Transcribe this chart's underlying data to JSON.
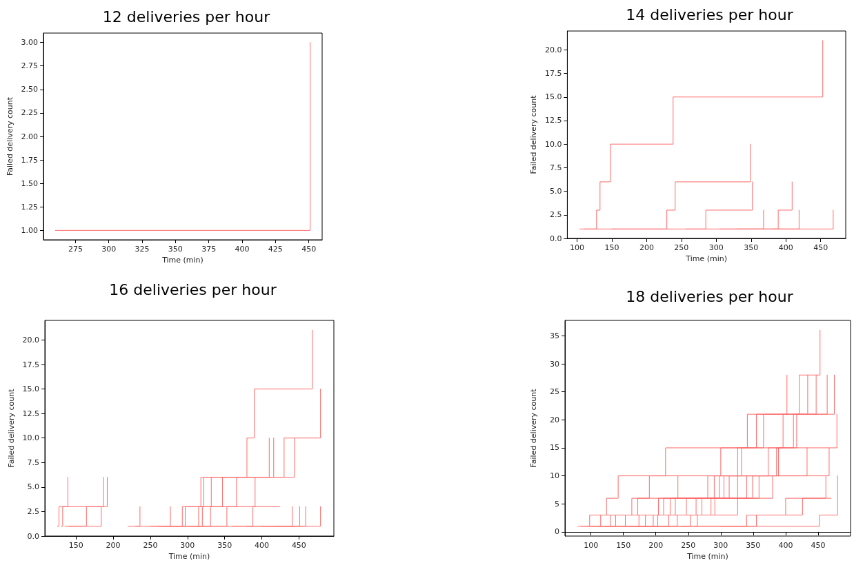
{
  "chart_data": [
    {
      "type": "step",
      "title": "12 deliveries per hour",
      "xlabel": "Time (min)",
      "ylabel": "Failed delivery count",
      "marker": "none",
      "xlim": [
        251,
        460
      ],
      "ylim": [
        0.9,
        3.1
      ],
      "xticks": [
        275,
        300,
        325,
        350,
        375,
        400,
        425,
        450
      ],
      "yticks": [
        {
          "value": 1,
          "label": "1.00"
        },
        {
          "value": 1.25,
          "label": "1.25"
        },
        {
          "value": 1.5,
          "label": "1.50"
        },
        {
          "value": 1.75,
          "label": "1.75"
        },
        {
          "value": 2,
          "label": "2.00"
        },
        {
          "value": 2.25,
          "label": "2.25"
        },
        {
          "value": 2.5,
          "label": "2.50"
        },
        {
          "value": 2.75,
          "label": "2.75"
        },
        {
          "value": 3,
          "label": "3.00"
        }
      ],
      "series": [
        {
          "color": "#ff6b6b",
          "x": [
            260,
            451
          ],
          "values": [
            1,
            3
          ]
        }
      ]
    },
    {
      "type": "step",
      "title": "14 deliveries per hour",
      "xlabel": "Time (min)",
      "ylabel": "Failed delivery count",
      "marker": "none",
      "xlim": [
        86,
        486
      ],
      "ylim": [
        0,
        22
      ],
      "xticks": [
        100,
        150,
        200,
        250,
        300,
        350,
        400,
        450
      ],
      "yticks": [
        {
          "value": 0,
          "label": "0.0"
        },
        {
          "value": 2.5,
          "label": "2.5"
        },
        {
          "value": 5,
          "label": "5.0"
        },
        {
          "value": 7.5,
          "label": "7.5"
        },
        {
          "value": 10,
          "label": "10.0"
        },
        {
          "value": 12.5,
          "label": "12.5"
        },
        {
          "value": 15,
          "label": "15.0"
        },
        {
          "value": 17.5,
          "label": "17.5"
        },
        {
          "value": 20,
          "label": "20.0"
        }
      ],
      "series": [
        {
          "color": "#ff6b6b",
          "x": [
            104,
            128,
            133,
            148,
            238,
            453
          ],
          "values": [
            1,
            3,
            6,
            10,
            15,
            21
          ]
        },
        {
          "color": "#ff6b6b",
          "x": [
            110,
            229,
            241,
            349
          ],
          "values": [
            1,
            3,
            6,
            10
          ]
        },
        {
          "color": "#ff6b6b",
          "x": [
            150,
            285,
            352
          ],
          "values": [
            1,
            3,
            6
          ]
        },
        {
          "color": "#ff6b6b",
          "x": [
            257,
            368
          ],
          "values": [
            1,
            3
          ]
        },
        {
          "color": "#ff6b6b",
          "x": [
            305,
            389,
            409
          ],
          "values": [
            1,
            3,
            6
          ]
        },
        {
          "color": "#ff6b6b",
          "x": [
            330,
            419
          ],
          "values": [
            1,
            3
          ]
        },
        {
          "color": "#ff6b6b",
          "x": [
            380,
            468
          ],
          "values": [
            1,
            3
          ]
        }
      ]
    },
    {
      "type": "step",
      "title": "16 deliveries per hour",
      "xlabel": "Time (min)",
      "ylabel": "Failed delivery count",
      "marker": "none",
      "xlim": [
        108,
        497
      ],
      "ylim": [
        0,
        22
      ],
      "xticks": [
        150,
        200,
        250,
        300,
        350,
        400,
        450
      ],
      "yticks": [
        {
          "value": 0,
          "label": "0.0"
        },
        {
          "value": 2.5,
          "label": "2.5"
        },
        {
          "value": 5,
          "label": "5.0"
        },
        {
          "value": 7.5,
          "label": "7.5"
        },
        {
          "value": 10,
          "label": "10.0"
        },
        {
          "value": 12.5,
          "label": "12.5"
        },
        {
          "value": 15,
          "label": "15.0"
        },
        {
          "value": 17.5,
          "label": "17.5"
        },
        {
          "value": 20,
          "label": "20.0"
        }
      ],
      "series": [
        {
          "color": "#ff6b6b",
          "x": [
            125,
            127,
            139
          ],
          "values": [
            1,
            3,
            6
          ]
        },
        {
          "color": "#ff6b6b",
          "x": [
            130,
            132,
            187
          ],
          "values": [
            1,
            3,
            6
          ]
        },
        {
          "color": "#ff6b6b",
          "x": [
            135,
            164,
            192
          ],
          "values": [
            1,
            3,
            6
          ]
        },
        {
          "color": "#ff6b6b",
          "x": [
            140,
            184
          ],
          "values": [
            1,
            3
          ]
        },
        {
          "color": "#ff6b6b",
          "x": [
            220,
            236
          ],
          "values": [
            1,
            3
          ]
        },
        {
          "color": "#ff6b6b",
          "x": [
            230,
            277
          ],
          "values": [
            1,
            3
          ]
        },
        {
          "color": "#ff6b6b",
          "x": [
            250,
            293,
            318,
            380,
            390,
            468
          ],
          "values": [
            1,
            3,
            6,
            10,
            15,
            21
          ]
        },
        {
          "color": "#ff6b6b",
          "x": [
            260,
            297,
            322,
            430,
            479
          ],
          "values": [
            1,
            3,
            6,
            10,
            15
          ]
        },
        {
          "color": "#ff6b6b",
          "x": [
            270,
            315,
            332,
            410
          ],
          "values": [
            1,
            3,
            6,
            10
          ]
        },
        {
          "color": "#ff6b6b",
          "x": [
            280,
            320,
            347,
            416
          ],
          "values": [
            1,
            3,
            6,
            10
          ]
        },
        {
          "color": "#ff6b6b",
          "x": [
            300,
            331,
            366,
            444
          ],
          "values": [
            1,
            3,
            6,
            10
          ]
        },
        {
          "color": "#ff6b6b",
          "x": [
            310,
            353,
            391
          ],
          "values": [
            1,
            3,
            6
          ]
        },
        {
          "color": "#ff6b6b",
          "x": [
            320,
            388,
            424
          ],
          "values": [
            1,
            3,
            3
          ]
        },
        {
          "color": "#ff6b6b",
          "x": [
            360,
            441
          ],
          "values": [
            1,
            3
          ]
        },
        {
          "color": "#ff6b6b",
          "x": [
            380,
            451
          ],
          "values": [
            1,
            3
          ]
        },
        {
          "color": "#ff6b6b",
          "x": [
            400,
            459
          ],
          "values": [
            1,
            3
          ]
        },
        {
          "color": "#ff6b6b",
          "x": [
            420,
            479
          ],
          "values": [
            1,
            3
          ]
        }
      ]
    },
    {
      "type": "step",
      "title": "18 deliveries per hour",
      "xlabel": "Time (min)",
      "ylabel": "Failed delivery count",
      "marker": "none",
      "xlim": [
        60,
        500
      ],
      "ylim": [
        -0.75,
        37.75
      ],
      "xticks": [
        100,
        150,
        200,
        250,
        300,
        350,
        400,
        450
      ],
      "yticks": [
        0,
        5,
        10,
        15,
        20,
        25,
        30,
        35
      ],
      "series": [
        {
          "color": "#ff6b6b",
          "x": [
            80,
            98,
            124,
            142,
            215,
            341,
            421,
            453
          ],
          "values": [
            1,
            3,
            6,
            10,
            15,
            21,
            28,
            36
          ]
        },
        {
          "color": "#ff6b6b",
          "x": [
            85,
            115,
            163,
            190,
            300,
            355,
            402
          ],
          "values": [
            1,
            3,
            6,
            10,
            15,
            21,
            28
          ]
        },
        {
          "color": "#ff6b6b",
          "x": [
            95,
            130,
            172,
            290,
            326,
            366,
            434
          ],
          "values": [
            1,
            3,
            6,
            10,
            15,
            21,
            28
          ]
        },
        {
          "color": "#ff6b6b",
          "x": [
            100,
            138,
            204,
            280,
            332,
            396,
            447
          ],
          "values": [
            1,
            3,
            6,
            10,
            15,
            21,
            28
          ]
        },
        {
          "color": "#ff6b6b",
          "x": [
            110,
            153,
            212,
            298,
            373,
            412,
            464
          ],
          "values": [
            1,
            3,
            6,
            10,
            15,
            21,
            28
          ]
        },
        {
          "color": "#ff6b6b",
          "x": [
            120,
            174,
            230,
            305,
            386,
            417,
            475
          ],
          "values": [
            1,
            3,
            6,
            10,
            15,
            21,
            28
          ]
        },
        {
          "color": "#ff6b6b",
          "x": [
            130,
            184,
            247,
            313,
            389,
            479
          ],
          "values": [
            1,
            3,
            6,
            10,
            15,
            21
          ]
        },
        {
          "color": "#ff6b6b",
          "x": [
            140,
            203,
            262,
            326,
            467
          ],
          "values": [
            1,
            3,
            6,
            10,
            15
          ]
        },
        {
          "color": "#ff6b6b",
          "x": [
            150,
            220,
            271,
            349,
            433
          ],
          "values": [
            1,
            3,
            6,
            10,
            15
          ]
        },
        {
          "color": "#ff6b6b",
          "x": [
            160,
            233,
            285,
            359
          ],
          "values": [
            1,
            3,
            6,
            10
          ]
        },
        {
          "color": "#ff6b6b",
          "x": [
            170,
            253,
            291,
            340
          ],
          "values": [
            1,
            3,
            6,
            10
          ]
        },
        {
          "color": "#ff6b6b",
          "x": [
            180,
            196,
            222,
            234
          ],
          "values": [
            1,
            3,
            6,
            10
          ]
        },
        {
          "color": "#ff6b6b",
          "x": [
            200,
            264,
            326,
            380
          ],
          "values": [
            1,
            3,
            6,
            10
          ]
        },
        {
          "color": "#ff6b6b",
          "x": [
            240,
            340,
            400,
            462
          ],
          "values": [
            1,
            3,
            6,
            10
          ]
        },
        {
          "color": "#ff6b6b",
          "x": [
            260,
            355,
            426,
            470
          ],
          "values": [
            1,
            3,
            6,
            6
          ]
        },
        {
          "color": "#ff6b6b",
          "x": [
            300,
            452,
            480
          ],
          "values": [
            1,
            3,
            10
          ]
        }
      ]
    }
  ]
}
